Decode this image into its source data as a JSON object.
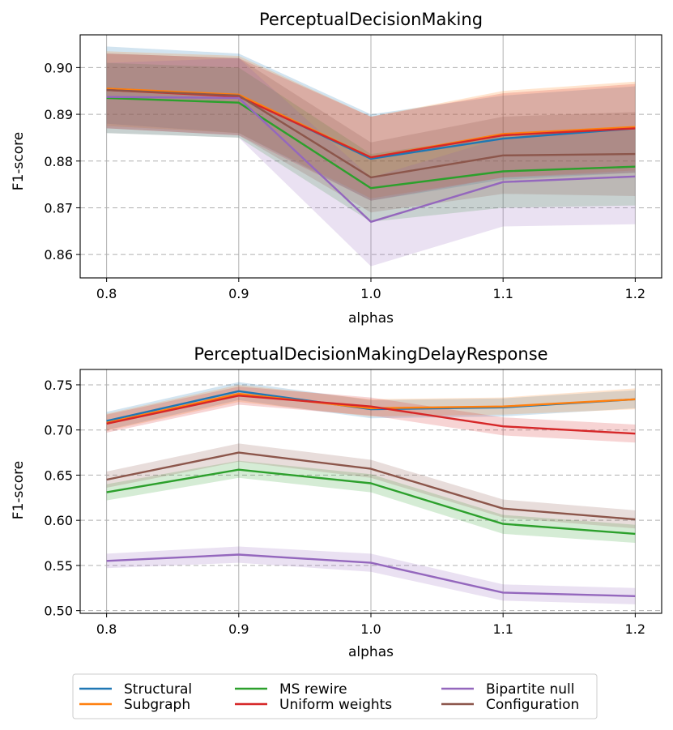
{
  "chart_data": [
    {
      "type": "line",
      "title": "PerceptualDecisionMaking",
      "xlabel": "alphas",
      "ylabel": "F1-score",
      "x": [
        0.8,
        0.9,
        1.0,
        1.1,
        1.2
      ],
      "x_ticks": [
        "0.8",
        "0.9",
        "1.0",
        "1.1",
        "1.2"
      ],
      "y_ticks": [
        "0.86",
        "0.87",
        "0.88",
        "0.89",
        "0.90"
      ],
      "y_tick_values": [
        0.86,
        0.87,
        0.88,
        0.89,
        0.9
      ],
      "ylim": [
        0.855,
        0.907
      ],
      "xlim": [
        0.78,
        1.22
      ],
      "grid": "vertical solid, horizontal dashed",
      "series": [
        {
          "name": "Structural",
          "color": "#1f77b4",
          "values": [
            0.8955,
            0.894,
            0.8805,
            0.8848,
            0.887
          ],
          "lower": [
            0.888,
            0.886,
            0.8715,
            0.876,
            0.8775
          ],
          "upper": [
            0.9045,
            0.903,
            0.89,
            0.894,
            0.896
          ]
        },
        {
          "name": "Subgraph",
          "color": "#ff7f0e",
          "values": [
            0.8955,
            0.8942,
            0.8808,
            0.8858,
            0.8873
          ],
          "lower": [
            0.8875,
            0.886,
            0.872,
            0.8765,
            0.878
          ],
          "upper": [
            0.9035,
            0.9025,
            0.8895,
            0.895,
            0.897
          ]
        },
        {
          "name": "MS rewire",
          "color": "#2ca02c",
          "values": [
            0.8935,
            0.8925,
            0.8742,
            0.8778,
            0.8788
          ],
          "lower": [
            0.886,
            0.885,
            0.867,
            0.87,
            0.8705
          ],
          "upper": [
            0.901,
            0.9,
            0.8815,
            0.8855,
            0.887
          ]
        },
        {
          "name": "Uniform weights",
          "color": "#d62728",
          "values": [
            0.8952,
            0.8938,
            0.8808,
            0.8855,
            0.887
          ],
          "lower": [
            0.887,
            0.8855,
            0.8715,
            0.8765,
            0.8775
          ],
          "upper": [
            0.903,
            0.902,
            0.8895,
            0.8945,
            0.8965
          ]
        },
        {
          "name": "Bipartite null",
          "color": "#9467bd",
          "values": [
            0.8937,
            0.8935,
            0.867,
            0.8755,
            0.8767
          ],
          "lower": [
            0.886,
            0.885,
            0.8575,
            0.866,
            0.8665
          ],
          "upper": [
            0.901,
            0.902,
            0.8765,
            0.885,
            0.887
          ]
        },
        {
          "name": "Configuration",
          "color": "#8c564b",
          "values": [
            0.8952,
            0.894,
            0.8765,
            0.8812,
            0.8815
          ],
          "lower": [
            0.887,
            0.8855,
            0.869,
            0.873,
            0.8725
          ],
          "upper": [
            0.903,
            0.902,
            0.884,
            0.8895,
            0.8905
          ]
        }
      ]
    },
    {
      "type": "line",
      "title": "PerceptualDecisionMakingDelayResponse",
      "xlabel": "alphas",
      "ylabel": "F1-score",
      "x": [
        0.8,
        0.9,
        1.0,
        1.1,
        1.2
      ],
      "x_ticks": [
        "0.8",
        "0.9",
        "1.0",
        "1.1",
        "1.2"
      ],
      "y_ticks": [
        "0.50",
        "0.55",
        "0.60",
        "0.65",
        "0.70",
        "0.75"
      ],
      "y_tick_values": [
        0.5,
        0.55,
        0.6,
        0.65,
        0.7,
        0.75
      ],
      "ylim": [
        0.497,
        0.767
      ],
      "xlim": [
        0.78,
        1.22
      ],
      "grid": "vertical solid, horizontal dashed",
      "series": [
        {
          "name": "Structural",
          "color": "#1f77b4",
          "values": [
            0.71,
            0.743,
            0.723,
            0.725,
            0.734
          ],
          "lower": [
            0.7,
            0.733,
            0.713,
            0.715,
            0.724
          ],
          "upper": [
            0.72,
            0.753,
            0.733,
            0.735,
            0.744
          ]
        },
        {
          "name": "Subgraph",
          "color": "#ff7f0e",
          "values": [
            0.708,
            0.74,
            0.724,
            0.726,
            0.734
          ],
          "lower": [
            0.699,
            0.731,
            0.715,
            0.717,
            0.723
          ],
          "upper": [
            0.718,
            0.75,
            0.734,
            0.736,
            0.746
          ]
        },
        {
          "name": "MS rewire",
          "color": "#2ca02c",
          "values": [
            0.631,
            0.656,
            0.641,
            0.596,
            0.585
          ],
          "lower": [
            0.622,
            0.647,
            0.631,
            0.585,
            0.575
          ],
          "upper": [
            0.64,
            0.666,
            0.651,
            0.606,
            0.595
          ]
        },
        {
          "name": "Uniform weights",
          "color": "#d62728",
          "values": [
            0.707,
            0.738,
            0.726,
            0.704,
            0.696
          ],
          "lower": [
            0.697,
            0.728,
            0.716,
            0.694,
            0.686
          ],
          "upper": [
            0.717,
            0.748,
            0.736,
            0.714,
            0.706
          ]
        },
        {
          "name": "Bipartite null",
          "color": "#9467bd",
          "values": [
            0.555,
            0.562,
            0.553,
            0.52,
            0.516
          ],
          "lower": [
            0.547,
            0.553,
            0.543,
            0.511,
            0.507
          ],
          "upper": [
            0.563,
            0.571,
            0.563,
            0.529,
            0.525
          ]
        },
        {
          "name": "Configuration",
          "color": "#8c564b",
          "values": [
            0.645,
            0.675,
            0.657,
            0.613,
            0.601
          ],
          "lower": [
            0.636,
            0.665,
            0.647,
            0.603,
            0.591
          ],
          "upper": [
            0.654,
            0.685,
            0.667,
            0.623,
            0.611
          ]
        }
      ]
    }
  ],
  "legend": {
    "placement": "bottom-center",
    "entries": [
      {
        "label": "Structural",
        "color": "#1f77b4"
      },
      {
        "label": "Subgraph",
        "color": "#ff7f0e"
      },
      {
        "label": "MS rewire",
        "color": "#2ca02c"
      },
      {
        "label": "Uniform weights",
        "color": "#d62728"
      },
      {
        "label": "Bipartite null",
        "color": "#9467bd"
      },
      {
        "label": "Configuration",
        "color": "#8c564b"
      }
    ]
  }
}
